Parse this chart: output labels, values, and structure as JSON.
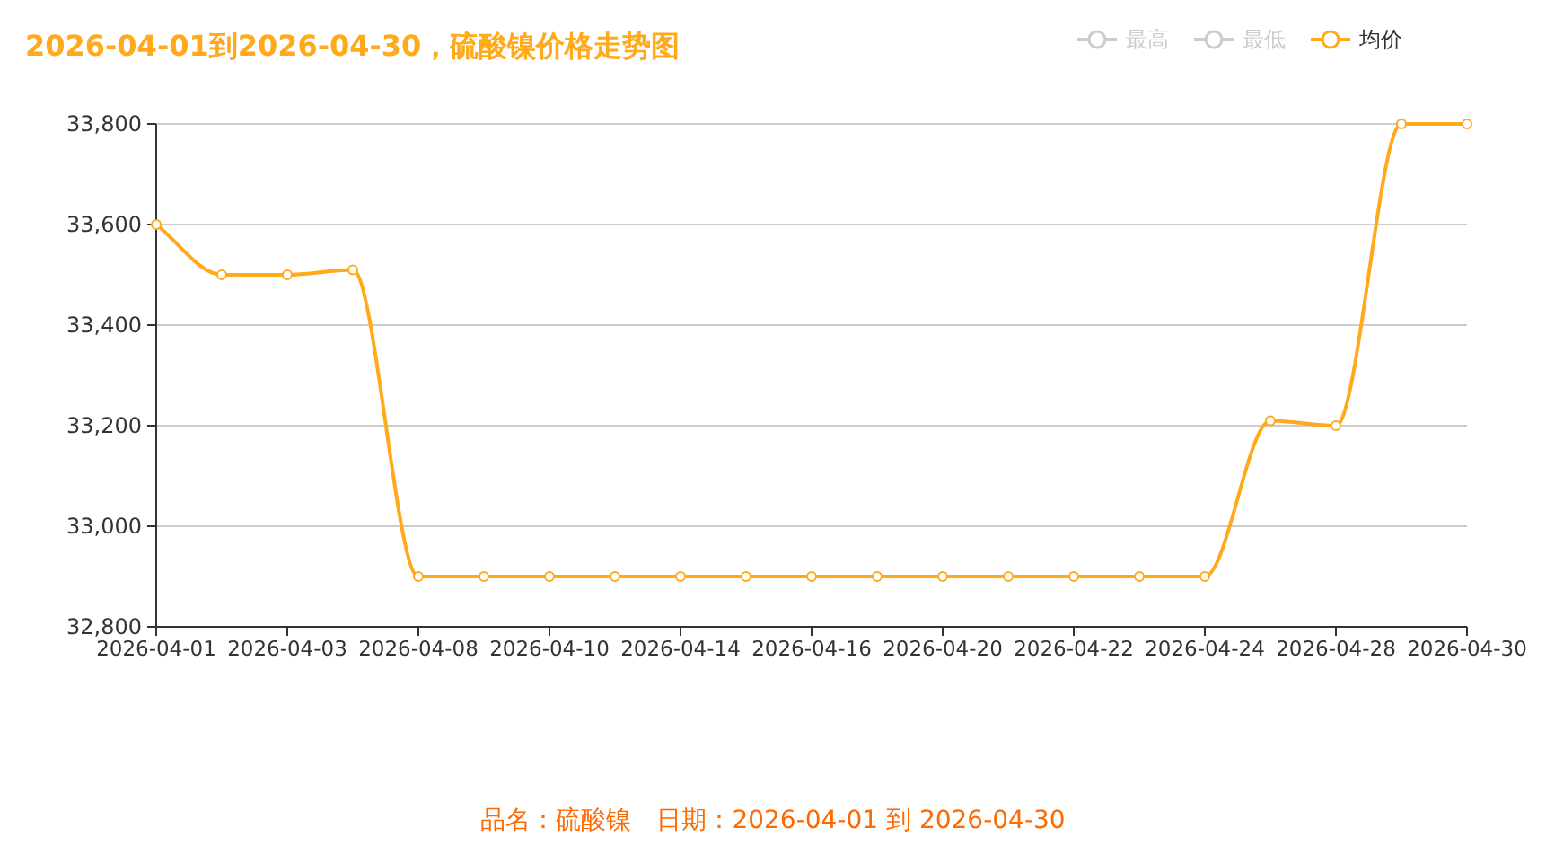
{
  "chart_data": {
    "type": "line",
    "title": "2026-04-01到2026-04-30，硫酸镍价格走势图",
    "categories": [
      "2026-04-01",
      null,
      "2026-04-03",
      null,
      "2026-04-08",
      null,
      "2026-04-10",
      null,
      "2026-04-14",
      null,
      "2026-04-16",
      null,
      "2026-04-20",
      null,
      "2026-04-22",
      null,
      "2026-04-24",
      null,
      "2026-04-28",
      null,
      "2026-04-30"
    ],
    "series": [
      {
        "name": "最高",
        "color": "#cccccc",
        "values": [
          null,
          null,
          null,
          null,
          null,
          null,
          null,
          null,
          null,
          null,
          null,
          null,
          null,
          null,
          null,
          null,
          null,
          null,
          null,
          null,
          null
        ]
      },
      {
        "name": "最低",
        "color": "#cccccc",
        "values": [
          null,
          null,
          null,
          null,
          null,
          null,
          null,
          null,
          null,
          null,
          null,
          null,
          null,
          null,
          null,
          null,
          null,
          null,
          null,
          null,
          null
        ]
      },
      {
        "name": "均价",
        "color": "#ffa91b",
        "values": [
          33600,
          33500,
          33500,
          33510,
          32900,
          32900,
          32900,
          32900,
          32900,
          32900,
          32900,
          32900,
          32900,
          32900,
          32900,
          32900,
          32900,
          33210,
          33200,
          33800,
          33800
        ]
      }
    ],
    "ylim": [
      32800,
      33800
    ],
    "yticks": [
      {
        "value": 32800,
        "label": "32,800"
      },
      {
        "value": 33000,
        "label": "33,000"
      },
      {
        "value": 33200,
        "label": "33,200"
      },
      {
        "value": 33400,
        "label": "33,400"
      },
      {
        "value": 33600,
        "label": "33,600"
      },
      {
        "value": 33800,
        "label": "33,800"
      }
    ],
    "grid": "y",
    "legend": "top right",
    "marker": "circle",
    "line_style": "solid",
    "annotations": [
      "品名：硫酸镍　日期：2026-04-01 到 2026-04-30"
    ]
  }
}
